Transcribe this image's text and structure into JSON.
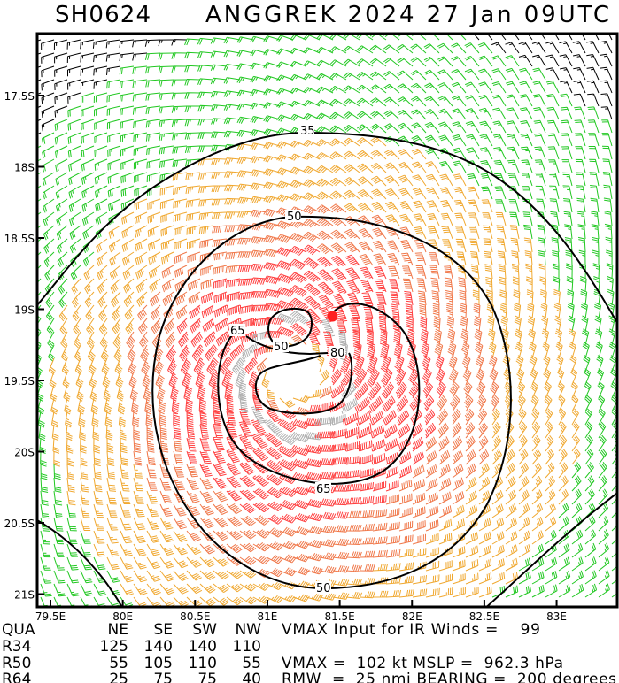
{
  "title": {
    "id": "SH0624",
    "storm": "ANGGREK 2024 27 Jan 09UTC"
  },
  "chart_data": {
    "type": "contour",
    "description_fields": "wind barbs with isotach contours (kt)",
    "x_ticks": [
      "79.5E",
      "80E",
      "80.5E",
      "81E",
      "81.5E",
      "82E",
      "82.5E",
      "83E"
    ],
    "x_tick_values": [
      79.5,
      80,
      80.5,
      81,
      81.5,
      82,
      82.5,
      83
    ],
    "y_ticks": [
      "17.5S",
      "18S",
      "18.5S",
      "19S",
      "19.5S",
      "20S",
      "20.5S",
      "21S"
    ],
    "y_tick_values": [
      -17.5,
      -18,
      -18.5,
      -19,
      -19.5,
      -20,
      -20.5,
      -21
    ],
    "xlim": [
      79.41,
      83.43
    ],
    "ylim": [
      -21.09,
      -17.07
    ],
    "contour_labels": [
      "35",
      "50",
      "65",
      "80",
      "50",
      "65",
      "50"
    ],
    "contour_levels": [
      35,
      50,
      65,
      80
    ],
    "storm_center": {
      "lat": -19.05,
      "lon": 81.45
    },
    "colors": {
      "calm": "#000000",
      "gale": "#22c822",
      "storm": "#f0a830",
      "strong": "#f0784a",
      "hurricane": "#ff4040",
      "max": "#b0b0b0",
      "center": "#ff2020"
    }
  },
  "info": {
    "header": {
      "qua": "QUA",
      "ne": "NE",
      "se": "SE",
      "sw": "SW",
      "nw": "NW",
      "vmax_ir": "VMAX Input for IR Winds =    99"
    },
    "rows": [
      {
        "label": "R34",
        "ne": "125",
        "se": "140",
        "sw": "140",
        "nw": "110",
        "extra": ""
      },
      {
        "label": "R50",
        "ne": "55",
        "se": "105",
        "sw": "110",
        "nw": "55",
        "extra": "VMAX =  102 kt MSLP =  962.3 hPa"
      },
      {
        "label": "R64",
        "ne": "25",
        "se": "75",
        "sw": "75",
        "nw": "40",
        "extra": "RMW  =  25 nmi BEARING =  200 degrees"
      }
    ]
  }
}
